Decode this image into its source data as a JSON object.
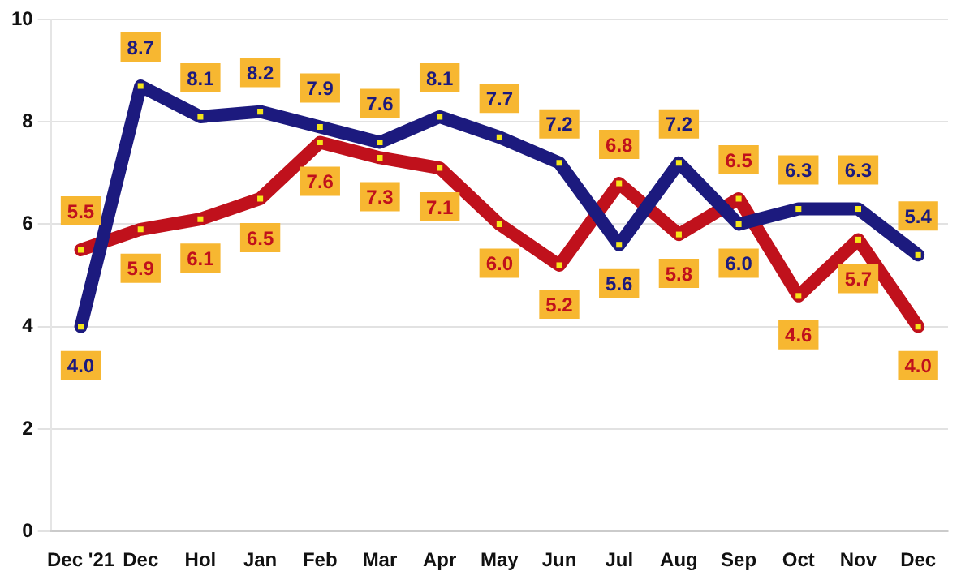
{
  "chart_data": {
    "type": "line",
    "categories": [
      "Dec '21",
      "Dec",
      "Hol",
      "Jan",
      "Feb",
      "Mar",
      "Apr",
      "May",
      "Jun",
      "Jul",
      "Aug",
      "Sep",
      "Oct",
      "Nov",
      "Dec"
    ],
    "series": [
      {
        "color": "#1c1a7e",
        "values": [
          4.0,
          8.7,
          8.1,
          8.2,
          7.9,
          7.6,
          8.1,
          7.7,
          7.2,
          5.6,
          7.2,
          6.0,
          6.3,
          6.3,
          5.4
        ],
        "value_labels": [
          "4.0",
          "8.7",
          "8.1",
          "8.2",
          "7.9",
          "7.6",
          "8.1",
          "7.7",
          "7.2",
          "5.6",
          "7.2",
          "6.0",
          "6.3",
          "6.3",
          "5.4"
        ]
      },
      {
        "color": "#c0111c",
        "values": [
          5.5,
          5.9,
          6.1,
          6.5,
          7.6,
          7.3,
          7.1,
          6.0,
          5.2,
          6.8,
          5.8,
          6.5,
          4.6,
          5.7,
          4.0
        ],
        "value_labels": [
          "5.5",
          "5.9",
          "6.1",
          "6.5",
          "7.6",
          "7.3",
          "7.1",
          "6.0",
          "5.2",
          "6.8",
          "5.8",
          "6.5",
          "4.6",
          "5.7",
          "4.0"
        ]
      }
    ],
    "ylim": [
      0,
      10
    ],
    "yticks": [
      0,
      2,
      4,
      6,
      8,
      10
    ],
    "grid": "y",
    "legend": false,
    "marker": "square",
    "line_style": "solid"
  }
}
